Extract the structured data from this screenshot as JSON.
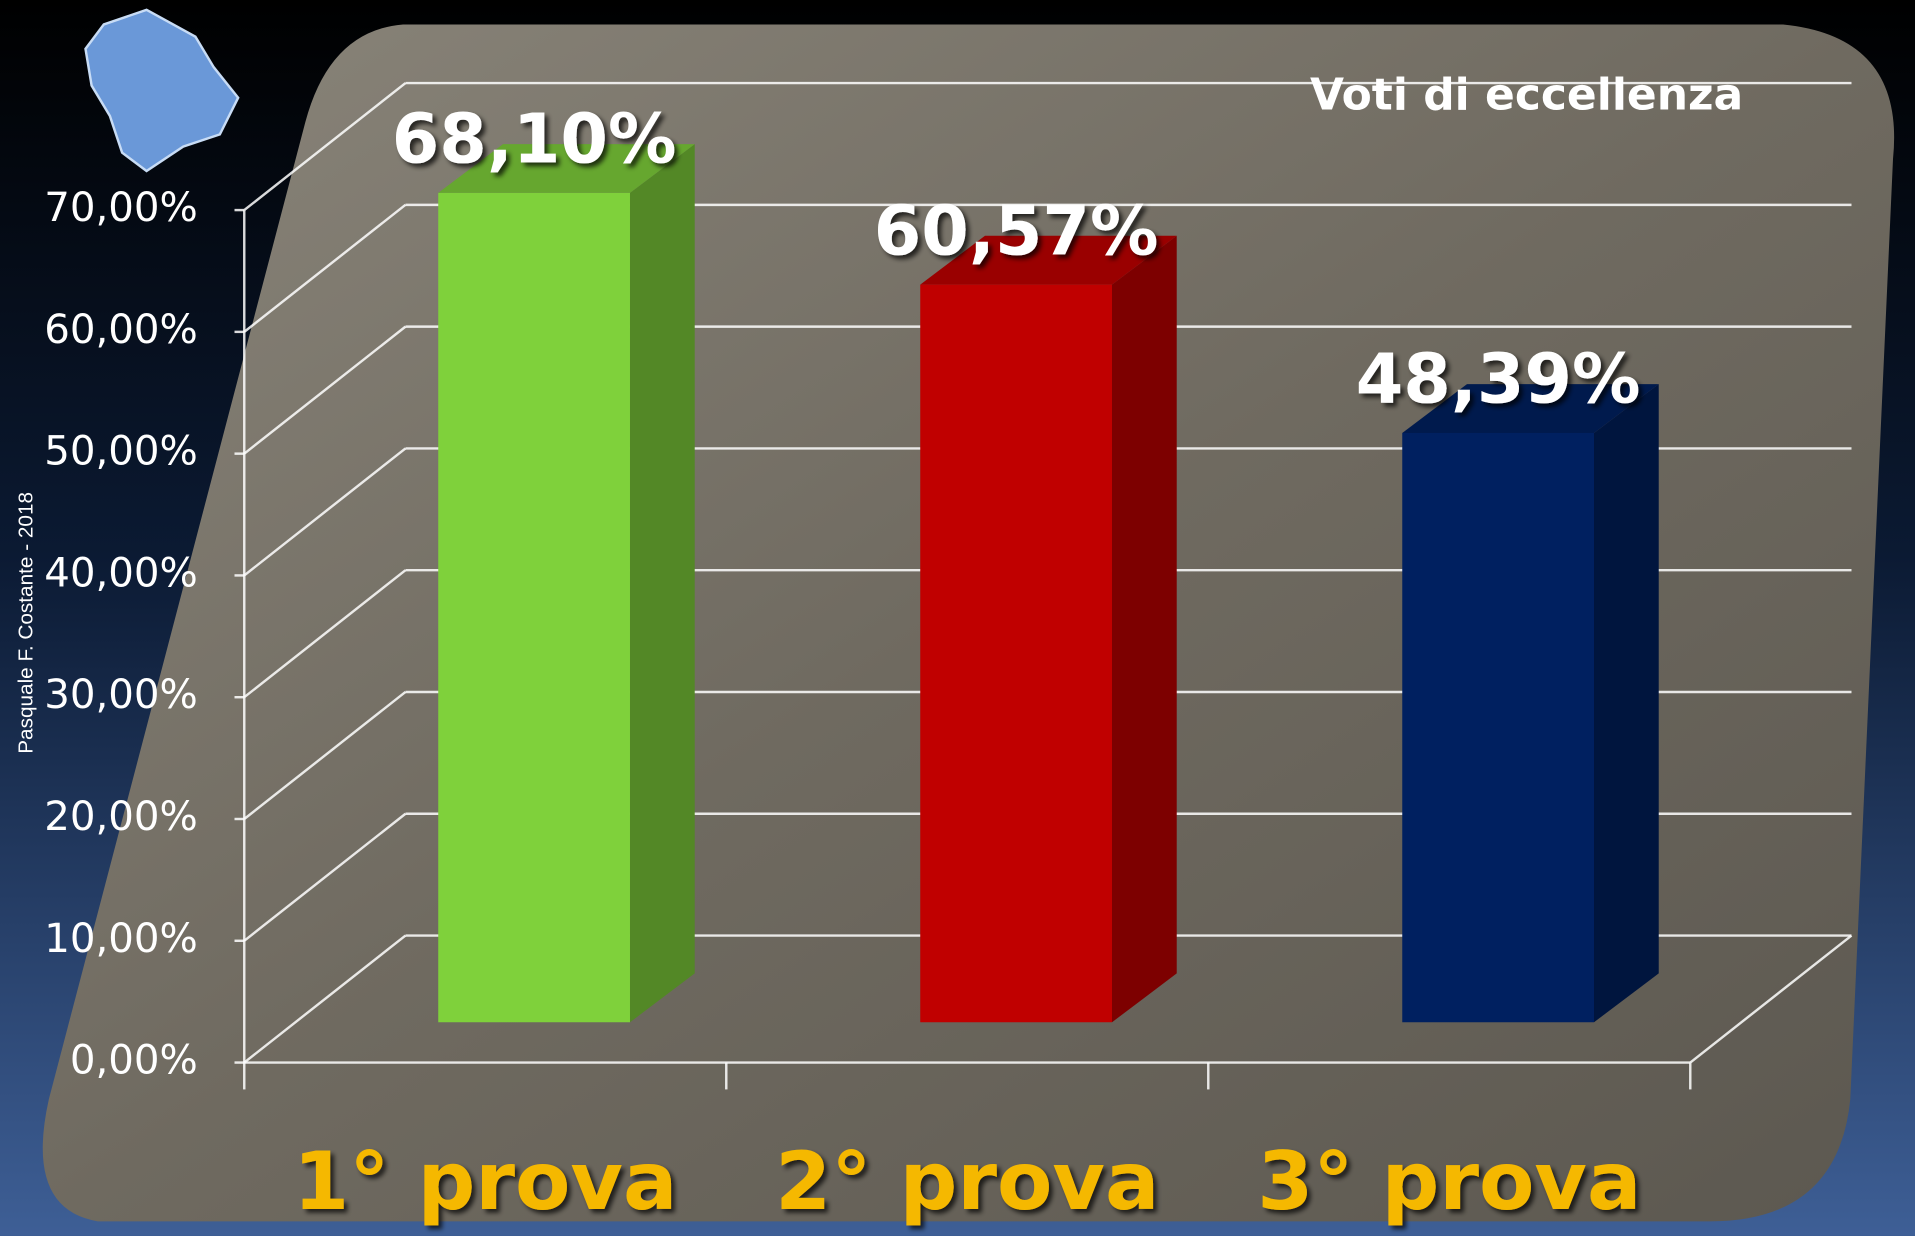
{
  "chart_data": {
    "type": "bar3d",
    "title": "Voti di eccellenza",
    "credit": "Pasquale  F. Costante - 2018",
    "categories": [
      "1° prova",
      "2° prova",
      "3° prova"
    ],
    "values": [
      68.1,
      60.57,
      48.39
    ],
    "value_labels": [
      "68,10%",
      "60,57%",
      "48,39%"
    ],
    "colors": [
      "#7fd13b",
      "#c00000",
      "#002060"
    ],
    "ylim": [
      0,
      70
    ],
    "yticks": [
      {
        "value": 0,
        "label": "0,00%"
      },
      {
        "value": 10,
        "label": "10,00%"
      },
      {
        "value": 20,
        "label": "20,00%"
      },
      {
        "value": 30,
        "label": "30,00%"
      },
      {
        "value": 40,
        "label": "40,00%"
      },
      {
        "value": 50,
        "label": "50,00%"
      },
      {
        "value": 60,
        "label": "60,00%"
      },
      {
        "value": 70,
        "label": "70,00%"
      }
    ],
    "grid": true
  }
}
